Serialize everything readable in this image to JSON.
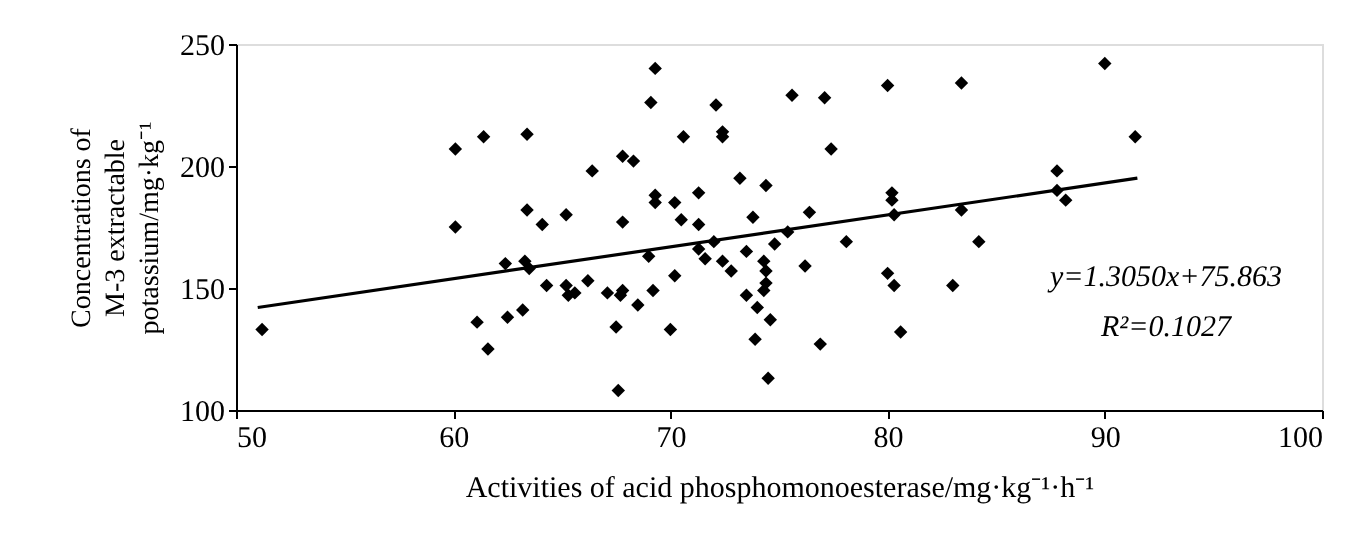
{
  "chart_data": {
    "type": "scatter",
    "xlabel": "Activities of acid phosphomonoesterase/mg·kg⁻¹·h⁻¹",
    "ylabel": "Concentrations of\nM-3 extractable\npotassium/mg·kg⁻¹",
    "xlim": [
      50,
      100
    ],
    "xticks": [
      50,
      60,
      70,
      80,
      90,
      100
    ],
    "ylim": [
      100,
      250
    ],
    "yticks": [
      100,
      150,
      200,
      250
    ],
    "grid": false,
    "annotations": [
      "y=1.3050x+75.863",
      "R²=0.1027"
    ],
    "series": [
      {
        "color": "#000000",
        "marker": "diamond",
        "x": [
          51.2,
          60.1,
          60.1,
          61.1,
          61.4,
          61.6,
          62.4,
          62.5,
          63.2,
          63.3,
          63.4,
          63.4,
          63.5,
          64.1,
          64.3,
          65.2,
          65.2,
          65.3,
          65.6,
          66.2,
          66.4,
          67.1,
          67.5,
          67.6,
          67.7,
          67.8,
          67.8,
          67.8,
          68.3,
          68.5,
          69.0,
          69.1,
          69.2,
          69.3,
          69.3,
          69.3,
          70.0,
          70.2,
          70.2,
          70.5,
          70.6,
          71.3,
          71.3,
          71.3,
          71.6,
          72.0,
          72.4,
          72.8,
          72.1,
          72.4,
          72.4,
          73.2,
          73.5,
          73.5,
          73.8,
          73.9,
          74.0,
          74.4,
          74.3,
          74.4,
          74.4,
          74.3,
          74.5,
          74.6,
          74.8,
          75.4,
          75.6,
          76.2,
          76.4,
          76.9,
          77.1,
          77.4,
          78.1,
          80.0,
          80.2,
          80.2,
          80.3,
          80.0,
          80.3,
          80.6,
          83.0,
          83.4,
          83.4,
          84.2,
          87.8,
          87.8,
          88.2,
          90.0,
          91.4
        ],
        "values": [
          133,
          207,
          175,
          136,
          212,
          125,
          160,
          138,
          141,
          161,
          213,
          182,
          158,
          176,
          151,
          180,
          151,
          147,
          148,
          153,
          198,
          148,
          134,
          108,
          147,
          177,
          149,
          204,
          202,
          143,
          163,
          226,
          149,
          240,
          188,
          185,
          133,
          155,
          185,
          178,
          212,
          176,
          189,
          166,
          162,
          169,
          161,
          157,
          225,
          214,
          212,
          195,
          165,
          147,
          179,
          129,
          142,
          192,
          161,
          157,
          152,
          149,
          113,
          137,
          168,
          173,
          229,
          159,
          181,
          127,
          228,
          207,
          169,
          233,
          189,
          186,
          180,
          156,
          151,
          132,
          151,
          234,
          182,
          169,
          198,
          190,
          186,
          242,
          212
        ]
      },
      {
        "type": "line",
        "color": "#000000",
        "x": [
          51,
          91.5
        ],
        "values": [
          142,
          195
        ],
        "line_style": "solid"
      }
    ]
  }
}
